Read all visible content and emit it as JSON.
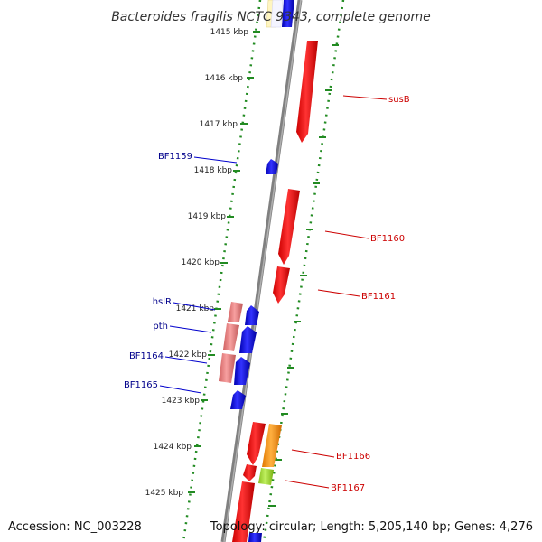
{
  "title": "Bacteroides fragilis NCTC 9343, complete genome",
  "footer": {
    "accession": "Accession: NC_003228",
    "summary": "Topology: circular; Length: 5,205,140 bp; Genes: 4,276"
  },
  "ticks": [
    "1415 kbp",
    "1416 kbp",
    "1417 kbp",
    "1418 kbp",
    "1419 kbp",
    "1420 kbp",
    "1421 kbp",
    "1422 kbp",
    "1423 kbp",
    "1424 kbp",
    "1425 kbp"
  ],
  "labels": {
    "susB": "susB",
    "BF1159": "BF1159",
    "BF1160": "BF1160",
    "BF1161": "BF1161",
    "hslR": "hslR",
    "pth": "pth",
    "BF1164": "BF1164",
    "BF1165": "BF1165",
    "BF1166": "BF1166",
    "BF1167": "BF1167"
  },
  "colors": {
    "backbone": "#808080",
    "ring_dots": "#228b22",
    "forward_gene": "#ff0000",
    "reverse_gene": "#0000ff",
    "rna_gene": "#f08080",
    "orange_gene": "#ff8c00",
    "green_gene": "#9acd32"
  }
}
